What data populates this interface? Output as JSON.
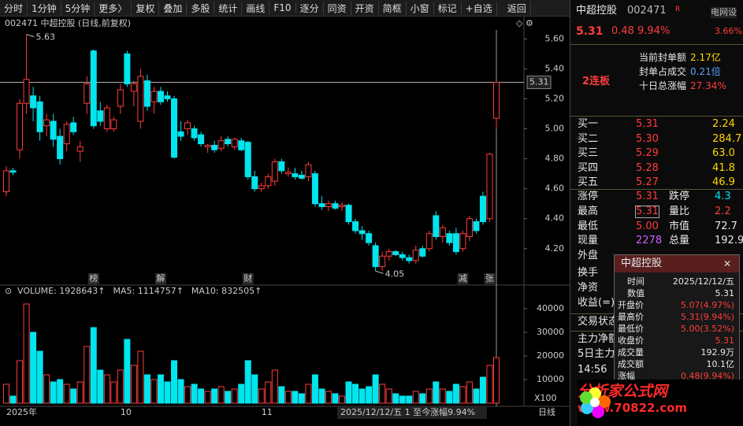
{
  "toolbar": [
    "分时",
    "1分钟",
    "5分钟",
    "更多〉",
    "复权",
    "叠加",
    "多股",
    "统计",
    "画线",
    "F10",
    "逐分",
    "同资",
    "开资",
    "简框",
    "小窗",
    "标记",
    "+自选",
    "返回"
  ],
  "chart_data": [
    {
      "type": "candlestick",
      "title": "002471 中超控股 (日线,前复权)",
      "open": [
        4.58,
        4.72,
        4.86,
        5.17,
        5.22,
        5.18,
        5.02,
        5.05,
        4.95,
        4.9,
        5.04,
        4.85,
        5.17,
        5.52,
        5.12,
        5.0,
        5.0,
        5.15,
        5.5,
        5.25,
        5.05,
        5.32,
        5.18,
        5.25,
        5.22,
        5.2,
        4.98,
        5.0,
        5.0,
        4.96,
        4.88,
        4.89,
        4.87,
        4.93,
        4.88,
        4.92,
        4.91,
        4.68,
        4.6,
        4.62,
        4.65,
        4.78,
        4.7,
        4.7,
        4.69,
        4.68,
        4.7,
        4.5,
        4.48,
        4.5,
        4.48,
        4.49,
        4.38,
        4.32,
        4.3,
        4.22,
        4.08,
        4.15,
        4.18,
        4.16,
        4.14,
        4.12,
        4.2,
        4.2,
        4.42,
        4.28,
        4.3,
        4.3,
        4.2,
        4.28,
        4.38,
        4.55,
        4.4,
        5.07
      ],
      "high": [
        4.75,
        4.74,
        5.2,
        5.63,
        5.28,
        5.22,
        5.1,
        5.1,
        5.0,
        5.05,
        5.08,
        4.92,
        5.35,
        5.53,
        5.18,
        5.16,
        5.08,
        5.3,
        5.52,
        5.32,
        5.4,
        5.36,
        5.28,
        5.28,
        5.25,
        5.22,
        5.05,
        5.06,
        5.02,
        4.98,
        4.9,
        4.92,
        4.95,
        4.95,
        4.94,
        4.94,
        4.92,
        4.72,
        4.64,
        4.7,
        4.8,
        4.8,
        4.74,
        4.74,
        4.72,
        4.78,
        4.72,
        4.55,
        4.52,
        4.52,
        4.51,
        4.5,
        4.4,
        4.35,
        4.32,
        4.24,
        4.18,
        4.2,
        4.19,
        4.18,
        4.16,
        4.22,
        4.22,
        4.32,
        4.45,
        4.36,
        4.32,
        4.34,
        4.32,
        4.42,
        4.4,
        4.58,
        4.84,
        5.31
      ],
      "low": [
        4.55,
        4.69,
        4.8,
        5.1,
        5.05,
        4.92,
        4.95,
        4.88,
        4.76,
        4.85,
        4.96,
        4.78,
        5.1,
        5.0,
        5.02,
        4.98,
        4.98,
        5.1,
        5.28,
        5.15,
        5.0,
        5.12,
        5.1,
        5.16,
        5.18,
        4.8,
        4.92,
        4.96,
        4.92,
        4.88,
        4.84,
        4.84,
        4.85,
        4.88,
        4.86,
        4.85,
        4.66,
        4.58,
        4.58,
        4.6,
        4.62,
        4.7,
        4.68,
        4.66,
        4.66,
        4.65,
        4.48,
        4.46,
        4.45,
        4.46,
        4.45,
        4.36,
        4.3,
        4.26,
        4.22,
        4.05,
        4.05,
        4.12,
        4.15,
        4.12,
        4.1,
        4.1,
        4.14,
        4.18,
        4.26,
        4.24,
        4.22,
        4.16,
        4.18,
        4.25,
        4.3,
        4.36,
        4.38,
        5.0
      ],
      "close": [
        4.72,
        4.71,
        5.17,
        5.33,
        5.14,
        4.98,
        5.06,
        4.93,
        4.8,
        5.03,
        4.98,
        4.88,
        5.3,
        5.02,
        5.05,
        5.14,
        5.06,
        5.26,
        5.3,
        5.3,
        5.35,
        5.15,
        5.25,
        5.18,
        5.2,
        4.81,
        4.95,
        5.04,
        4.94,
        4.9,
        4.89,
        4.86,
        4.92,
        4.9,
        4.93,
        4.86,
        4.68,
        4.6,
        4.62,
        4.68,
        4.78,
        4.72,
        4.71,
        4.68,
        4.67,
        4.76,
        4.5,
        4.48,
        4.5,
        4.47,
        4.49,
        4.38,
        4.32,
        4.3,
        4.24,
        4.08,
        4.15,
        4.18,
        4.16,
        4.14,
        4.12,
        4.19,
        4.15,
        4.3,
        4.28,
        4.34,
        4.24,
        4.18,
        4.3,
        4.4,
        4.32,
        4.38,
        4.83,
        5.31
      ],
      "up_color": "#ff3c3c",
      "down_color": "#00e5ee",
      "ylim": [
        4.02,
        5.66
      ],
      "yticks": [
        {
          "value": 5.6,
          "label": "5.60"
        },
        {
          "value": 5.4,
          "label": "5.40"
        },
        {
          "value": 5.2,
          "label": "5.20"
        },
        {
          "value": 5.0,
          "label": "5.00"
        },
        {
          "value": 4.8,
          "label": "4.80"
        },
        {
          "value": 4.6,
          "label": "4.60"
        },
        {
          "value": 4.4,
          "label": "4.40"
        },
        {
          "value": 4.2,
          "label": "4.20"
        }
      ],
      "price_line": {
        "value": 5.31,
        "label": "5.31"
      },
      "annotations": [
        {
          "index": 3,
          "value": 5.63
        },
        {
          "index": 55,
          "value": 4.05
        }
      ],
      "events": [
        {
          "index": 13,
          "label": "榜",
          "color": "#e0b000"
        },
        {
          "index": 23,
          "label": "解",
          "color": "#e0b000"
        },
        {
          "index": 36,
          "label": "财",
          "color": "#6aa8ff"
        },
        {
          "index": 68,
          "label": "减",
          "color": "#40c040"
        },
        {
          "index": 72,
          "label": "张",
          "color": "#ff4040"
        }
      ],
      "xlabels": [
        {
          "index": 0,
          "label": "2025年"
        },
        {
          "index": 17,
          "label": "10"
        },
        {
          "index": 38,
          "label": "11"
        }
      ],
      "status": "2025/12/12/五 1 至今涨幅9.94%",
      "period": "日线"
    },
    {
      "type": "bar",
      "header": [
        {
          "text": "VOLUME: 1928643↑",
          "color": "#ffffff"
        },
        {
          "text": "MA5: 1114757↑",
          "color": "#ffffff"
        },
        {
          "text": "MA10: 832505↑",
          "color": "#ffd700"
        }
      ],
      "values": [
        8000,
        3000,
        18000,
        42000,
        30000,
        22000,
        12000,
        9000,
        10000,
        8000,
        6000,
        9000,
        24000,
        32000,
        14000,
        12000,
        9000,
        14000,
        27000,
        16000,
        22000,
        12000,
        10000,
        12000,
        9000,
        18000,
        10000,
        7000,
        8000,
        6000,
        5000,
        6000,
        7000,
        5000,
        6000,
        8000,
        18000,
        12000,
        6000,
        9000,
        14000,
        7000,
        5000,
        5000,
        4000,
        8000,
        12000,
        6000,
        5000,
        4000,
        3000,
        9000,
        8000,
        6000,
        7000,
        12000,
        8000,
        6000,
        4000,
        3000,
        3000,
        5000,
        4000,
        6000,
        9000,
        6000,
        5000,
        8000,
        7000,
        9000,
        6000,
        11000,
        16000,
        19286
      ],
      "ylim": [
        0,
        44000
      ],
      "yticks": [
        10000,
        20000,
        30000,
        40000
      ],
      "unit": "X100"
    }
  ],
  "quote": {
    "name": "中超控股",
    "code": "002471",
    "flag": "R",
    "sector": "电网设",
    "sector_change": "3.66%",
    "price": "5.31",
    "change": "0.48",
    "pct": "9.94%",
    "seal": [
      [
        "当前封单额",
        "2.17亿"
      ],
      [
        "封单占成交",
        "0.21倍"
      ],
      [
        "十日总涨幅",
        "27.34%"
      ]
    ],
    "board": "2连板",
    "bids": [
      [
        "买一",
        "5.31",
        "2.24"
      ],
      [
        "买二",
        "5.30",
        "284.7"
      ],
      [
        "买三",
        "5.29",
        "63.0"
      ],
      [
        "买四",
        "5.28",
        "41.8"
      ],
      [
        "买五",
        "5.27",
        "46.9"
      ]
    ],
    "stats": [
      [
        "涨停",
        "5.31",
        "跌停",
        "4.3"
      ],
      [
        "最高",
        "5.31",
        "量比",
        "2.2"
      ],
      [
        "最低",
        "5.00",
        "市值",
        "72.7"
      ],
      [
        "现量",
        "2278",
        "总量",
        "192.9"
      ],
      [
        "外盘"
      ]
    ],
    "more": [
      "换手",
      "净资",
      "收益(=)",
      "交易状态",
      "主力净额",
      "5日主力",
      "14:56"
    ]
  },
  "popup": {
    "title": "中超控股",
    "rows": [
      [
        "时间",
        "2025/12/12/五"
      ],
      [
        "数值",
        "5.31"
      ],
      [
        "开盘价",
        "5.07(4.97%)"
      ],
      [
        "最高价",
        "5.31(9.94%)"
      ],
      [
        "最低价",
        "5.00(3.52%)"
      ],
      [
        "收盘价",
        "5.31"
      ],
      [
        "成交量",
        "192.9万"
      ],
      [
        "成交额",
        "10.1亿"
      ],
      [
        "涨幅",
        "0.48(9.94%)"
      ]
    ]
  },
  "logo": {
    "text": "分析家公式网",
    "url": "www.70822.com"
  }
}
